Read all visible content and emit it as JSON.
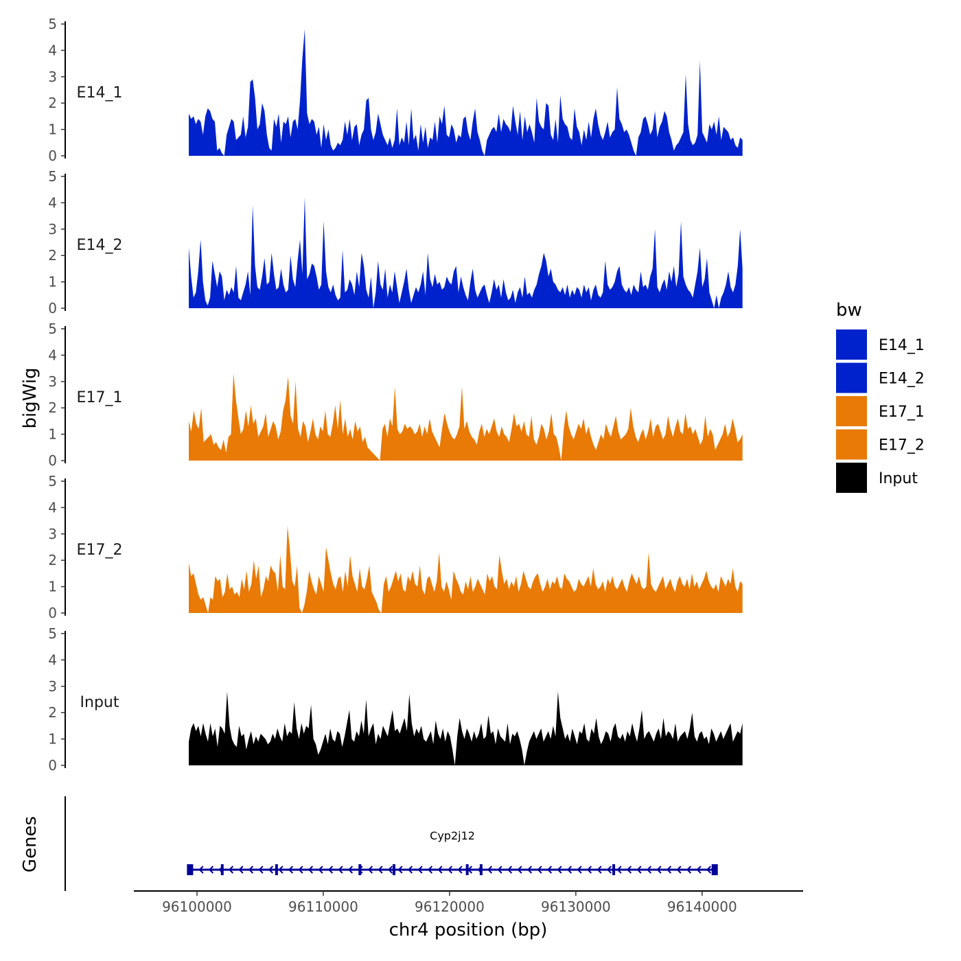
{
  "chart_data": {
    "type": "area",
    "ylabel": "bigWig",
    "xlabel": "chr4 position (bp)",
    "genes_label": "Genes",
    "xlim": [
      96095000,
      96148000
    ],
    "data_x_range": [
      96099350,
      96143200
    ],
    "x_ticks": [
      96100000,
      96110000,
      96120000,
      96130000,
      96140000
    ],
    "x_tick_labels": [
      "96100000",
      "96110000",
      "96120000",
      "96130000",
      "96140000"
    ],
    "ylim": [
      0,
      5
    ],
    "y_ticks": [
      0,
      1,
      2,
      3,
      4,
      5
    ],
    "y_tick_labels": [
      "0",
      "1",
      "2",
      "3",
      "4",
      "5"
    ],
    "legend": {
      "title": "bw",
      "entries": [
        {
          "label": "E14_1",
          "color": "#0022cc"
        },
        {
          "label": "E14_2",
          "color": "#0022cc"
        },
        {
          "label": "E17_1",
          "color": "#e87a05"
        },
        {
          "label": "E17_2",
          "color": "#e87a05"
        },
        {
          "label": "Input",
          "color": "#000000"
        }
      ]
    },
    "series": [
      {
        "name": "E14_1",
        "label": "E14_1",
        "color": "#0022cc",
        "values": [
          1.6,
          1.4,
          1.5,
          1.2,
          1.4,
          1.3,
          0.8,
          1.5,
          1.8,
          1.7,
          1.4,
          1.3,
          0.2,
          0.3,
          0.1,
          0.0,
          0.8,
          1.1,
          1.4,
          1.3,
          0.6,
          0.7,
          0.8,
          1.5,
          0.7,
          1.1,
          2.8,
          2.9,
          2.2,
          1.0,
          1.2,
          2.0,
          1.7,
          0.8,
          0.3,
          0.2,
          1.4,
          1.1,
          1.6,
          0.5,
          1.3,
          1.2,
          1.5,
          0.7,
          1.3,
          1.4,
          1.0,
          2.1,
          3.7,
          4.8,
          1.6,
          1.2,
          1.4,
          1.3,
          0.8,
          1.1,
          0.3,
          1.2,
          0.6,
          1.0,
          0.4,
          0.2,
          0.3,
          0.5,
          0.4,
          0.6,
          1.3,
          0.8,
          1.4,
          0.6,
          1.1,
          1.2,
          0.4,
          0.8,
          1.0,
          2.1,
          2.2,
          1.0,
          0.6,
          0.9,
          1.6,
          1.2,
          0.8,
          0.6,
          0.4,
          0.7,
          0.3,
          0.6,
          1.8,
          0.4,
          0.7,
          0.5,
          1.3,
          0.4,
          1.8,
          0.6,
          0.8,
          0.2,
          1.2,
          0.5,
          1.1,
          0.3,
          0.7,
          0.6,
          1.3,
          0.5,
          1.5,
          1.2,
          1.9,
          0.8,
          0.7,
          1.2,
          1.0,
          0.5,
          0.8,
          0.7,
          1.4,
          1.5,
          0.9,
          0.6,
          1.3,
          1.8,
          0.9,
          0.6,
          0.2,
          0.0,
          0.6,
          0.8,
          1.0,
          1.1,
          0.9,
          1.6,
          0.9,
          1.4,
          1.2,
          1.1,
          0.9,
          1.9,
          1.3,
          0.8,
          1.7,
          0.6,
          1.5,
          0.9,
          1.2,
          0.9,
          0.5,
          2.2,
          1.3,
          1.1,
          1.0,
          2.0,
          1.9,
          0.8,
          0.6,
          1.4,
          0.5,
          2.3,
          1.4,
          1.2,
          1.1,
          0.7,
          0.6,
          1.8,
          1.1,
          0.9,
          0.4,
          1.0,
          0.6,
          1.3,
          0.7,
          1.4,
          1.8,
          1.2,
          0.8,
          0.6,
          0.9,
          1.3,
          0.7,
          0.9,
          1.0,
          2.6,
          1.4,
          1.2,
          0.9,
          1.0,
          0.8,
          0.5,
          0.2,
          0.0,
          0.7,
          0.9,
          1.4,
          1.5,
          1.2,
          0.8,
          1.0,
          1.7,
          0.7,
          1.1,
          1.3,
          1.7,
          1.5,
          0.9,
          0.6,
          0.2,
          0.4,
          0.5,
          0.7,
          0.9,
          3.1,
          1.2,
          0.6,
          0.4,
          0.5,
          0.8,
          3.6,
          0.9,
          0.7,
          0.5,
          1.2,
          1.0,
          1.3,
          0.8,
          1.5,
          0.6,
          1.1,
          1.0,
          0.9,
          0.6,
          0.7,
          0.4,
          0.3,
          0.7,
          0.6
        ]
      },
      {
        "name": "E14_2",
        "label": "E14_2",
        "color": "#0022cc",
        "values": [
          2.3,
          1.2,
          0.4,
          0.6,
          1.4,
          2.6,
          1.0,
          0.3,
          0.1,
          0.4,
          1.8,
          1.3,
          0.8,
          1.4,
          1.2,
          0.3,
          0.7,
          0.5,
          0.8,
          0.6,
          1.6,
          0.4,
          0.3,
          0.6,
          0.9,
          1.4,
          0.5,
          3.9,
          1.6,
          0.8,
          0.7,
          1.2,
          1.9,
          0.9,
          1.0,
          2.1,
          1.3,
          0.7,
          0.8,
          1.5,
          0.9,
          0.6,
          0.7,
          2.0,
          1.1,
          0.8,
          1.8,
          2.6,
          1.3,
          4.2,
          1.1,
          1.3,
          1.7,
          1.6,
          1.2,
          0.7,
          0.9,
          3.3,
          1.4,
          0.8,
          0.6,
          0.9,
          0.5,
          0.3,
          0.4,
          2.2,
          0.6,
          0.7,
          1.1,
          0.9,
          0.5,
          1.4,
          0.8,
          2.1,
          1.6,
          0.7,
          0.4,
          1.2,
          0.0,
          0.6,
          1.8,
          0.9,
          0.7,
          1.5,
          0.4,
          0.9,
          0.6,
          1.4,
          0.8,
          0.2,
          0.6,
          1.0,
          1.5,
          0.7,
          0.2,
          0.5,
          0.8,
          0.6,
          0.9,
          1.4,
          0.5,
          2.1,
          1.1,
          0.8,
          1.3,
          0.9,
          1.0,
          0.7,
          0.8,
          1.2,
          1.0,
          0.9,
          1.4,
          1.6,
          0.6,
          1.2,
          0.8,
          0.5,
          0.3,
          1.0,
          1.5,
          0.7,
          0.4,
          0.6,
          0.8,
          0.9,
          0.5,
          0.2,
          0.6,
          1.1,
          0.7,
          0.9,
          0.4,
          1.1,
          0.6,
          0.3,
          0.4,
          0.7,
          0.2,
          0.6,
          0.8,
          0.4,
          1.2,
          0.5,
          0.6,
          0.4,
          0.7,
          0.9,
          1.3,
          1.6,
          2.1,
          1.8,
          1.2,
          1.5,
          1.0,
          0.9,
          0.7,
          0.6,
          0.8,
          0.5,
          0.9,
          0.4,
          0.7,
          0.5,
          0.8,
          0.7,
          0.4,
          0.9,
          0.6,
          0.8,
          0.3,
          0.7,
          0.9,
          0.5,
          0.4,
          0.6,
          1.8,
          0.9,
          0.7,
          0.8,
          1.0,
          1.4,
          1.6,
          0.9,
          0.7,
          0.6,
          0.8,
          0.5,
          0.9,
          0.7,
          0.6,
          1.4,
          0.8,
          0.9,
          0.7,
          1.2,
          1.5,
          3.0,
          0.8,
          0.6,
          0.9,
          1.1,
          0.7,
          1.4,
          1.0,
          1.6,
          0.8,
          1.3,
          3.3,
          1.2,
          0.9,
          0.7,
          0.6,
          0.4,
          0.9,
          1.4,
          2.3,
          0.8,
          1.1,
          1.9,
          0.6,
          0.3,
          0.0,
          0.5,
          0.0,
          0.4,
          0.6,
          0.9,
          1.4,
          0.8,
          0.6,
          0.9,
          1.6,
          3.0,
          1.5
        ]
      },
      {
        "name": "E17_1",
        "label": "E17_1",
        "color": "#e87a05",
        "values": [
          1.5,
          1.1,
          1.9,
          1.4,
          1.2,
          2.0,
          0.7,
          0.8,
          0.9,
          1.0,
          0.6,
          0.7,
          0.5,
          0.4,
          0.8,
          0.3,
          0.9,
          1.0,
          3.3,
          2.3,
          1.6,
          1.0,
          1.2,
          1.9,
          1.3,
          2.1,
          1.4,
          1.6,
          0.9,
          1.1,
          1.3,
          1.8,
          0.9,
          1.2,
          1.5,
          1.3,
          0.8,
          1.1,
          1.9,
          2.3,
          3.2,
          1.7,
          1.4,
          3.0,
          1.2,
          0.9,
          1.5,
          1.3,
          0.7,
          1.1,
          1.6,
          1.0,
          0.8,
          1.3,
          1.1,
          1.9,
          1.0,
          0.9,
          1.4,
          2.1,
          1.2,
          2.3,
          1.0,
          1.6,
          0.9,
          1.2,
          0.8,
          1.5,
          1.1,
          1.3,
          0.7,
          0.9,
          0.5,
          0.4,
          0.3,
          0.2,
          0.1,
          0.0,
          1.2,
          1.4,
          0.9,
          1.6,
          1.3,
          2.8,
          1.2,
          1.0,
          1.1,
          1.4,
          1.2,
          1.3,
          1.2,
          1.0,
          1.1,
          1.4,
          0.9,
          1.3,
          1.0,
          1.6,
          1.1,
          0.9,
          0.7,
          0.5,
          1.2,
          1.8,
          1.4,
          1.1,
          0.9,
          0.8,
          1.0,
          1.3,
          2.8,
          1.2,
          1.5,
          1.1,
          0.9,
          0.8,
          0.6,
          1.1,
          1.4,
          0.9,
          1.2,
          1.0,
          1.3,
          1.6,
          1.1,
          0.9,
          1.3,
          1.0,
          0.9,
          0.7,
          1.2,
          1.8,
          1.3,
          1.4,
          1.1,
          1.5,
          1.0,
          0.9,
          1.7,
          0.8,
          0.6,
          0.9,
          1.4,
          1.2,
          0.8,
          1.1,
          1.8,
          1.0,
          0.9,
          0.5,
          0.0,
          1.2,
          1.9,
          1.3,
          1.0,
          0.8,
          1.1,
          1.4,
          1.2,
          1.6,
          1.0,
          1.3,
          0.9,
          0.6,
          0.4,
          0.7,
          1.0,
          0.8,
          1.4,
          1.1,
          0.9,
          1.3,
          1.7,
          1.1,
          0.8,
          0.9,
          1.0,
          1.2,
          2.0,
          1.3,
          0.9,
          0.7,
          1.0,
          1.2,
          0.8,
          1.1,
          1.6,
          0.9,
          1.3,
          1.4,
          1.1,
          0.8,
          1.0,
          1.7,
          1.2,
          0.9,
          1.3,
          1.6,
          1.1,
          1.0,
          1.8,
          1.2,
          1.3,
          1.0,
          1.2,
          0.9,
          0.6,
          0.8,
          1.7,
          0.9,
          1.2,
          1.0,
          0.4,
          0.6,
          0.8,
          1.0,
          1.4,
          0.9,
          1.1,
          1.6,
          1.2,
          0.7,
          0.8,
          1.0
        ]
      },
      {
        "name": "E17_2",
        "label": "E17_2",
        "color": "#e87a05",
        "values": [
          1.9,
          1.4,
          1.5,
          1.1,
          0.7,
          0.5,
          0.6,
          0.3,
          0.0,
          0.6,
          0.5,
          1.4,
          1.2,
          1.3,
          0.6,
          0.8,
          1.5,
          0.9,
          1.0,
          0.7,
          0.8,
          0.6,
          1.3,
          0.9,
          1.6,
          0.8,
          1.1,
          2.0,
          1.3,
          1.8,
          0.6,
          0.9,
          1.4,
          1.2,
          1.8,
          1.6,
          1.5,
          0.8,
          2.2,
          1.0,
          0.9,
          3.3,
          2.4,
          1.2,
          1.0,
          1.8,
          0.2,
          0.0,
          0.3,
          0.8,
          1.6,
          1.2,
          0.9,
          0.7,
          1.4,
          1.1,
          0.8,
          2.5,
          2.0,
          1.5,
          1.1,
          0.9,
          1.3,
          1.4,
          0.8,
          1.6,
          1.0,
          2.2,
          1.4,
          1.1,
          0.8,
          1.7,
          1.0,
          0.9,
          1.3,
          1.8,
          0.8,
          0.6,
          0.4,
          0.1,
          0.0,
          1.1,
          1.4,
          0.8,
          1.0,
          1.3,
          1.6,
          1.2,
          1.5,
          0.9,
          0.8,
          1.4,
          1.2,
          1.6,
          1.1,
          1.0,
          1.8,
          0.9,
          0.7,
          1.3,
          1.4,
          1.1,
          0.8,
          1.2,
          2.3,
          1.0,
          0.8,
          1.2,
          0.9,
          0.5,
          1.6,
          1.3,
          1.1,
          0.8,
          0.7,
          1.2,
          0.9,
          1.4,
          0.8,
          1.0,
          1.3,
          1.1,
          0.9,
          0.7,
          1.5,
          1.2,
          1.4,
          1.0,
          0.9,
          2.2,
          1.6,
          1.1,
          1.3,
          0.9,
          1.2,
          1.0,
          1.4,
          0.8,
          1.1,
          1.6,
          1.3,
          1.0,
          0.9,
          1.2,
          1.4,
          1.5,
          1.1,
          0.8,
          1.0,
          1.3,
          0.9,
          1.2,
          1.1,
          1.4,
          1.0,
          0.9,
          1.5,
          1.3,
          1.2,
          1.0,
          0.8,
          0.9,
          1.3,
          1.1,
          1.0,
          1.2,
          1.4,
          1.0,
          1.7,
          1.1,
          0.9,
          1.0,
          1.2,
          0.8,
          1.3,
          1.1,
          1.4,
          1.0,
          0.9,
          1.1,
          1.3,
          1.0,
          0.8,
          1.2,
          1.5,
          1.3,
          1.1,
          1.4,
          1.0,
          0.9,
          1.0,
          2.3,
          1.1,
          0.9,
          0.8,
          1.0,
          1.2,
          1.4,
          0.9,
          1.1,
          1.3,
          1.0,
          0.8,
          1.2,
          1.4,
          1.1,
          1.0,
          1.3,
          0.9,
          1.5,
          1.0,
          1.2,
          0.9,
          1.1,
          1.3,
          1.6,
          1.2,
          1.0,
          0.9,
          1.1,
          0.8,
          1.4,
          1.2,
          1.0,
          1.3,
          1.1,
          1.7,
          1.0,
          0.8,
          1.2,
          1.1
        ]
      },
      {
        "name": "Input",
        "label": "Input",
        "color": "#000000",
        "values": [
          0.9,
          1.4,
          1.6,
          1.3,
          1.5,
          1.1,
          1.6,
          1.2,
          0.9,
          1.6,
          1.1,
          1.4,
          0.7,
          1.5,
          1.4,
          1.2,
          2.8,
          1.5,
          1.0,
          0.8,
          0.7,
          1.5,
          1.1,
          1.2,
          0.6,
          1.0,
          1.3,
          0.8,
          1.1,
          0.9,
          1.2,
          1.1,
          1.0,
          0.8,
          0.9,
          1.2,
          1.0,
          1.4,
          1.1,
          0.9,
          1.6,
          1.1,
          1.3,
          1.2,
          2.4,
          1.4,
          1.0,
          1.6,
          1.2,
          1.5,
          1.4,
          2.3,
          1.0,
          0.8,
          0.4,
          0.6,
          0.9,
          1.2,
          0.8,
          1.4,
          1.0,
          0.9,
          1.3,
          1.2,
          0.7,
          1.1,
          1.6,
          2.1,
          1.0,
          0.9,
          1.3,
          1.1,
          1.7,
          1.2,
          2.5,
          1.1,
          1.4,
          1.6,
          0.8,
          1.2,
          1.0,
          1.5,
          1.3,
          1.1,
          1.6,
          2.1,
          1.3,
          1.4,
          1.2,
          1.5,
          1.8,
          1.3,
          2.7,
          1.6,
          1.1,
          1.4,
          1.2,
          1.5,
          1.0,
          0.9,
          1.1,
          1.3,
          0.8,
          1.7,
          1.2,
          1.0,
          1.4,
          0.9,
          1.3,
          1.1,
          0.6,
          0.0,
          1.1,
          1.8,
          1.3,
          1.0,
          1.4,
          1.2,
          0.9,
          1.3,
          1.0,
          1.2,
          1.6,
          1.0,
          1.1,
          1.9,
          1.2,
          1.3,
          0.8,
          1.4,
          1.1,
          1.0,
          0.9,
          1.6,
          0.8,
          1.2,
          1.1,
          1.3,
          1.0,
          0.6,
          0.0,
          0.5,
          0.9,
          1.1,
          1.3,
          1.0,
          1.2,
          1.4,
          0.9,
          1.1,
          1.3,
          1.0,
          1.5,
          1.1,
          2.8,
          1.8,
          1.4,
          1.0,
          1.2,
          0.9,
          1.4,
          1.1,
          0.8,
          1.3,
          1.2,
          1.6,
          1.0,
          0.9,
          1.4,
          1.2,
          1.8,
          1.1,
          0.8,
          1.0,
          1.3,
          1.2,
          0.9,
          1.4,
          1.6,
          1.1,
          1.0,
          1.2,
          0.9,
          1.3,
          1.1,
          1.6,
          1.2,
          0.9,
          1.4,
          2.1,
          1.0,
          1.2,
          1.3,
          1.1,
          0.9,
          1.2,
          1.4,
          1.0,
          1.8,
          1.1,
          1.3,
          1.2,
          1.0,
          1.6,
          0.9,
          1.1,
          1.2,
          1.3,
          1.0,
          1.4,
          2.0,
          1.1,
          0.9,
          1.2,
          1.3,
          1.0,
          1.1,
          0.8,
          1.4,
          1.2,
          0.9,
          1.1,
          1.3,
          1.0,
          1.2,
          1.4,
          1.6,
          0.9,
          1.1,
          1.3,
          1.2,
          1.6
        ]
      }
    ],
    "gene": {
      "name": "Cyp2j12",
      "start": 96099450,
      "end": 96141000,
      "strand": "-",
      "exons": [
        96099450,
        96102000,
        96106300,
        96112900,
        96115600,
        96121400,
        96122500,
        96133000,
        96141000
      ],
      "color": "#000099"
    }
  }
}
